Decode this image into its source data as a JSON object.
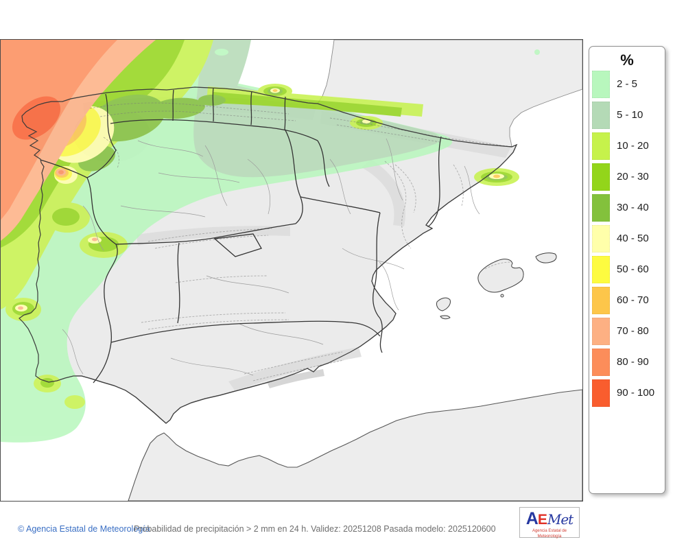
{
  "page": {
    "background": "#ffffff"
  },
  "map": {
    "land_color": "#ebebeb",
    "neighbor_land_color": "#ededed",
    "sea_color": "#ffffff",
    "coast_border_color": "#3d3d3d",
    "region_border_color": "#333333",
    "province_border_color": "#9b9b9b"
  },
  "legend": {
    "title": "%",
    "items": [
      {
        "label": "2 - 5",
        "color": "#b8f7bd"
      },
      {
        "label": "5 - 10",
        "color": "#b4dab6"
      },
      {
        "label": "10 - 20",
        "color": "#c6f24b"
      },
      {
        "label": "20 - 30",
        "color": "#93d51a"
      },
      {
        "label": "30 - 40",
        "color": "#83c13c"
      },
      {
        "label": "40 - 50",
        "color": "#ffffaa"
      },
      {
        "label": "50 - 60",
        "color": "#fdfb40"
      },
      {
        "label": "60 - 70",
        "color": "#fdc64a"
      },
      {
        "label": "70 - 80",
        "color": "#fdb083"
      },
      {
        "label": "80 - 90",
        "color": "#fc8d5a"
      },
      {
        "label": "90 - 100",
        "color": "#f95d2e"
      }
    ]
  },
  "footer": {
    "copyright": "© Agencia Estatal de Meteorología",
    "description": "Probabilidad de precipitación > 2 mm en 24 h. Validez: 20251208 Pasada modelo: 2025120600"
  },
  "logo": {
    "letter_a": "A",
    "letter_e": "E",
    "letters_met": "Met",
    "subtitle": "Agencia Estatal de Meteorología"
  }
}
